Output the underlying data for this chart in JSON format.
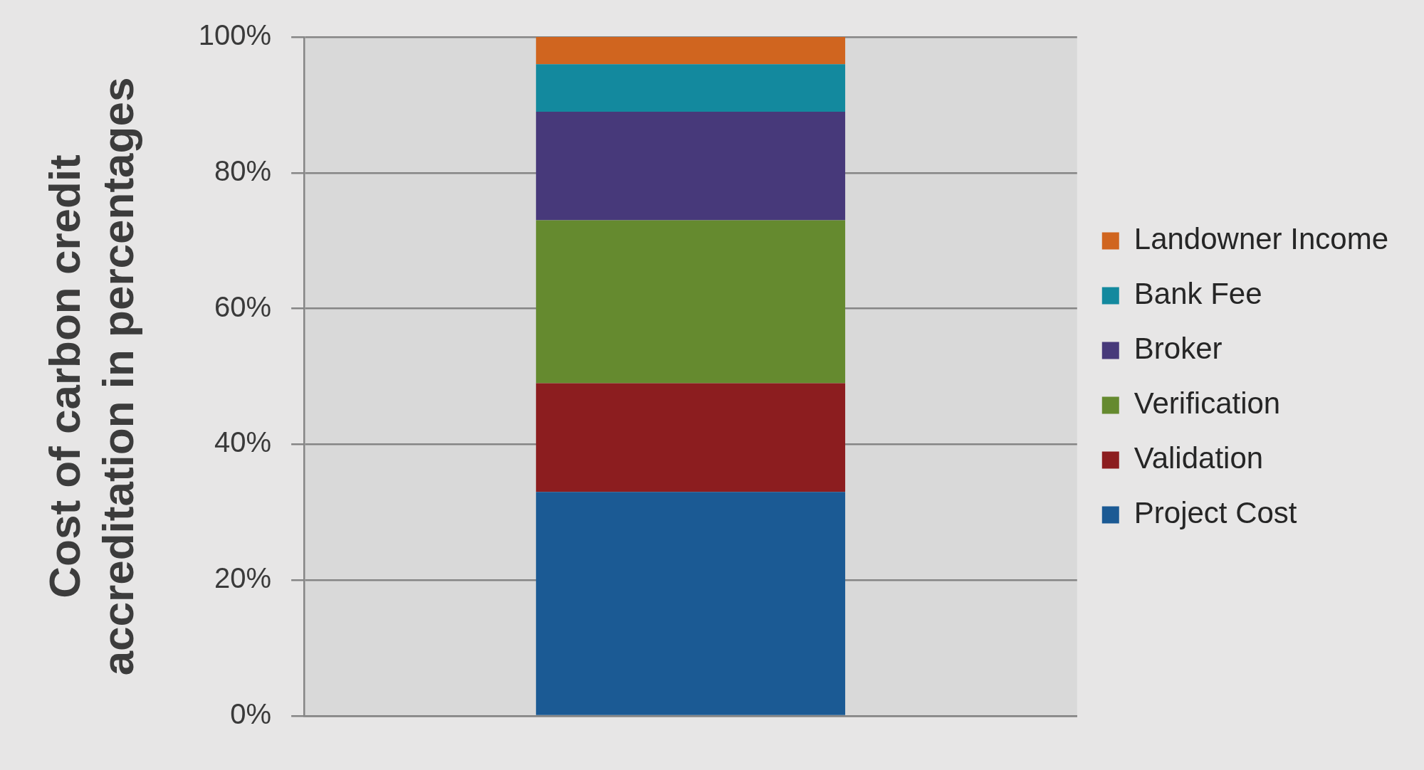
{
  "chart_data": {
    "type": "bar",
    "ylabel": "Cost of carbon credit accreditation in percentages",
    "categories": [
      null
    ],
    "series": [
      {
        "name": "Project Cost",
        "color": "#1b5a94",
        "values": [
          33
        ]
      },
      {
        "name": "Validation",
        "color": "#8c1d1f",
        "values": [
          16
        ]
      },
      {
        "name": "Verification",
        "color": "#658a2f",
        "values": [
          24
        ]
      },
      {
        "name": "Broker",
        "color": "#47397a",
        "values": [
          16
        ]
      },
      {
        "name": "Bank Fee",
        "color": "#13899e",
        "values": [
          7
        ]
      },
      {
        "name": "Landowner Income",
        "color": "#d0651f",
        "values": [
          4
        ]
      }
    ],
    "stacked": true,
    "ylim": [
      0,
      100
    ],
    "yticks": [
      {
        "value": 0,
        "label": "0%"
      },
      {
        "value": 20,
        "label": "20%"
      },
      {
        "value": 40,
        "label": "40%"
      },
      {
        "value": 60,
        "label": "60%"
      },
      {
        "value": 80,
        "label": "80%"
      },
      {
        "value": 100,
        "label": "100%"
      }
    ],
    "grid": "y",
    "legend": "right"
  }
}
